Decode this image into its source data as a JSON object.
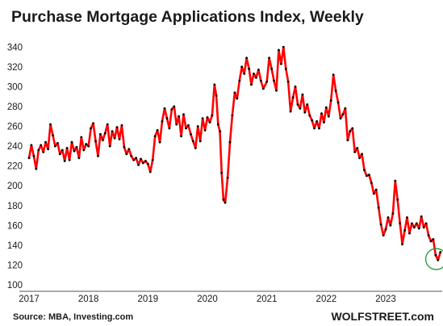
{
  "chart_data": {
    "type": "line",
    "title": "Purchase Mortgage Applications Index, Weekly",
    "source": "Source: MBA, Investing.com",
    "brand": "WOLFSTREET.com",
    "xlabel": "",
    "ylabel": "",
    "x_ticks": [
      "2017",
      "2018",
      "2019",
      "2020",
      "2021",
      "2022",
      "2023"
    ],
    "xlim": [
      2017.0,
      2023.95
    ],
    "ylim": [
      100,
      350
    ],
    "y_ticks": [
      100,
      120,
      140,
      160,
      180,
      200,
      220,
      240,
      260,
      280,
      300,
      320,
      340
    ],
    "grid": false,
    "legend": "none",
    "highlight": {
      "x": 2023.85,
      "y": 126,
      "shape": "circle"
    },
    "series": [
      {
        "line_color": "#ff0000",
        "marker_color": "#000000",
        "points": [
          [
            2017.0,
            228
          ],
          [
            2017.04,
            241
          ],
          [
            2017.08,
            230
          ],
          [
            2017.12,
            217
          ],
          [
            2017.16,
            236
          ],
          [
            2017.2,
            241
          ],
          [
            2017.24,
            234
          ],
          [
            2017.28,
            244
          ],
          [
            2017.32,
            237
          ],
          [
            2017.36,
            262
          ],
          [
            2017.4,
            251
          ],
          [
            2017.44,
            240
          ],
          [
            2017.48,
            243
          ],
          [
            2017.52,
            232
          ],
          [
            2017.56,
            236
          ],
          [
            2017.6,
            225
          ],
          [
            2017.64,
            238
          ],
          [
            2017.68,
            226
          ],
          [
            2017.72,
            244
          ],
          [
            2017.76,
            235
          ],
          [
            2017.8,
            239
          ],
          [
            2017.84,
            228
          ],
          [
            2017.88,
            249
          ],
          [
            2017.92,
            236
          ],
          [
            2017.96,
            242
          ],
          [
            2018.0,
            240
          ],
          [
            2018.04,
            258
          ],
          [
            2018.08,
            263
          ],
          [
            2018.12,
            245
          ],
          [
            2018.16,
            230
          ],
          [
            2018.2,
            252
          ],
          [
            2018.24,
            246
          ],
          [
            2018.28,
            253
          ],
          [
            2018.32,
            262
          ],
          [
            2018.36,
            240
          ],
          [
            2018.4,
            255
          ],
          [
            2018.44,
            248
          ],
          [
            2018.48,
            259
          ],
          [
            2018.52,
            247
          ],
          [
            2018.56,
            261
          ],
          [
            2018.6,
            239
          ],
          [
            2018.64,
            232
          ],
          [
            2018.68,
            237
          ],
          [
            2018.72,
            230
          ],
          [
            2018.76,
            226
          ],
          [
            2018.8,
            228
          ],
          [
            2018.84,
            221
          ],
          [
            2018.88,
            227
          ],
          [
            2018.92,
            223
          ],
          [
            2018.96,
            225
          ],
          [
            2019.0,
            222
          ],
          [
            2019.04,
            214
          ],
          [
            2019.08,
            226
          ],
          [
            2019.12,
            250
          ],
          [
            2019.16,
            256
          ],
          [
            2019.2,
            244
          ],
          [
            2019.24,
            265
          ],
          [
            2019.28,
            278
          ],
          [
            2019.32,
            268
          ],
          [
            2019.36,
            258
          ],
          [
            2019.4,
            277
          ],
          [
            2019.44,
            280
          ],
          [
            2019.48,
            262
          ],
          [
            2019.52,
            270
          ],
          [
            2019.56,
            250
          ],
          [
            2019.6,
            272
          ],
          [
            2019.64,
            258
          ],
          [
            2019.68,
            261
          ],
          [
            2019.72,
            252
          ],
          [
            2019.76,
            245
          ],
          [
            2019.8,
            238
          ],
          [
            2019.84,
            260
          ],
          [
            2019.88,
            245
          ],
          [
            2019.92,
            268
          ],
          [
            2019.96,
            256
          ],
          [
            2020.0,
            269
          ],
          [
            2020.04,
            264
          ],
          [
            2020.08,
            271
          ],
          [
            2020.12,
            302
          ],
          [
            2020.15,
            291
          ],
          [
            2020.18,
            262
          ],
          [
            2020.21,
            255
          ],
          [
            2020.24,
            213
          ],
          [
            2020.27,
            186
          ],
          [
            2020.3,
            183
          ],
          [
            2020.34,
            208
          ],
          [
            2020.38,
            244
          ],
          [
            2020.42,
            271
          ],
          [
            2020.46,
            294
          ],
          [
            2020.5,
            288
          ],
          [
            2020.54,
            306
          ],
          [
            2020.58,
            320
          ],
          [
            2020.62,
            313
          ],
          [
            2020.66,
            329
          ],
          [
            2020.7,
            318
          ],
          [
            2020.74,
            302
          ],
          [
            2020.78,
            313
          ],
          [
            2020.82,
            309
          ],
          [
            2020.86,
            317
          ],
          [
            2020.9,
            306
          ],
          [
            2020.94,
            298
          ],
          [
            2021.0,
            305
          ],
          [
            2021.04,
            329
          ],
          [
            2021.08,
            318
          ],
          [
            2021.12,
            306
          ],
          [
            2021.16,
            296
          ],
          [
            2021.2,
            337
          ],
          [
            2021.24,
            323
          ],
          [
            2021.28,
            340
          ],
          [
            2021.32,
            318
          ],
          [
            2021.36,
            305
          ],
          [
            2021.4,
            275
          ],
          [
            2021.44,
            289
          ],
          [
            2021.48,
            300
          ],
          [
            2021.52,
            282
          ],
          [
            2021.56,
            278
          ],
          [
            2021.6,
            292
          ],
          [
            2021.64,
            274
          ],
          [
            2021.68,
            282
          ],
          [
            2021.72,
            271
          ],
          [
            2021.76,
            266
          ],
          [
            2021.8,
            258
          ],
          [
            2021.84,
            265
          ],
          [
            2021.88,
            258
          ],
          [
            2021.92,
            273
          ],
          [
            2021.96,
            264
          ],
          [
            2022.0,
            279
          ],
          [
            2022.04,
            270
          ],
          [
            2022.08,
            286
          ],
          [
            2022.12,
            312
          ],
          [
            2022.16,
            296
          ],
          [
            2022.2,
            284
          ],
          [
            2022.24,
            268
          ],
          [
            2022.28,
            272
          ],
          [
            2022.32,
            278
          ],
          [
            2022.36,
            246
          ],
          [
            2022.4,
            255
          ],
          [
            2022.44,
            258
          ],
          [
            2022.48,
            234
          ],
          [
            2022.52,
            238
          ],
          [
            2022.56,
            228
          ],
          [
            2022.6,
            232
          ],
          [
            2022.64,
            216
          ],
          [
            2022.68,
            210
          ],
          [
            2022.72,
            211
          ],
          [
            2022.76,
            203
          ],
          [
            2022.8,
            192
          ],
          [
            2022.84,
            196
          ],
          [
            2022.88,
            178
          ],
          [
            2022.92,
            161
          ],
          [
            2022.96,
            150
          ],
          [
            2023.0,
            156
          ],
          [
            2023.04,
            168
          ],
          [
            2023.08,
            160
          ],
          [
            2023.12,
            172
          ],
          [
            2023.16,
            205
          ],
          [
            2023.2,
            186
          ],
          [
            2023.24,
            162
          ],
          [
            2023.28,
            141
          ],
          [
            2023.32,
            155
          ],
          [
            2023.36,
            168
          ],
          [
            2023.4,
            152
          ],
          [
            2023.44,
            162
          ],
          [
            2023.48,
            158
          ],
          [
            2023.52,
            162
          ],
          [
            2023.56,
            157
          ],
          [
            2023.6,
            169
          ],
          [
            2023.64,
            158
          ],
          [
            2023.68,
            162
          ],
          [
            2023.72,
            150
          ],
          [
            2023.76,
            144
          ],
          [
            2023.8,
            146
          ],
          [
            2023.84,
            130
          ],
          [
            2023.88,
            125
          ],
          [
            2023.92,
            133
          ]
        ]
      }
    ]
  }
}
